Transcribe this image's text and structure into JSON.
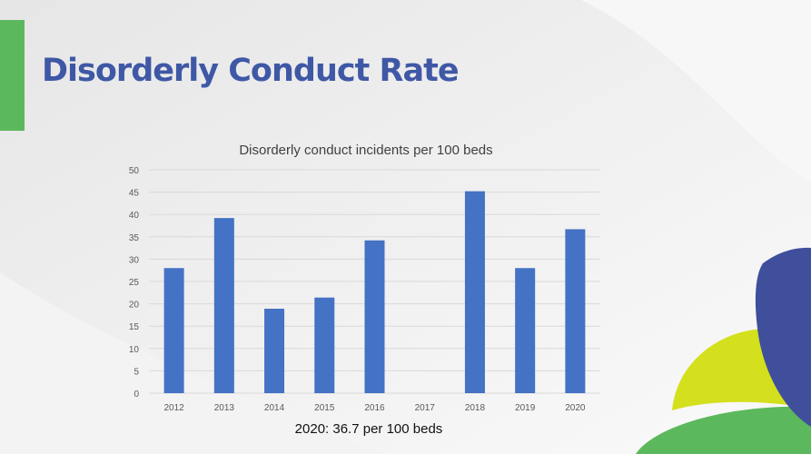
{
  "slide": {
    "title": "Disorderly Conduct Rate",
    "caption": "2020: 36.7 per 100 beds"
  },
  "colors": {
    "title": "#3f58a6",
    "bar": "#4472c4",
    "accent_green": "#5cb85c",
    "accent_yellow": "#d4df1e",
    "accent_blue": "#3f4f9c"
  },
  "chart_data": {
    "type": "bar",
    "title": "Disorderly conduct incidents per 100 beds",
    "xlabel": "",
    "ylabel": "",
    "categories": [
      "2012",
      "2013",
      "2014",
      "2015",
      "2016",
      "2017",
      "2018",
      "2019",
      "2020"
    ],
    "values": [
      28,
      39.2,
      18.9,
      21.4,
      34.2,
      null,
      45.2,
      28,
      36.7
    ],
    "ylim": [
      0,
      50
    ],
    "yticks": [
      "0",
      "5",
      "10",
      "15",
      "20",
      "25",
      "30",
      "35",
      "40",
      "45",
      "50"
    ],
    "grid": true,
    "legend": "none"
  }
}
